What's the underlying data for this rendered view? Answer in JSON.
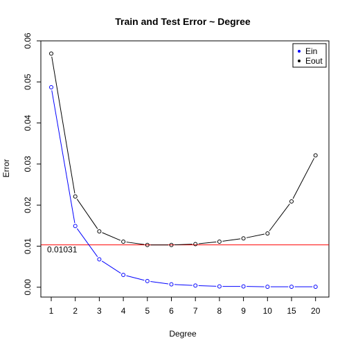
{
  "chart_data": {
    "type": "line",
    "title": "Train and Test Error ~ Degree",
    "xlabel": "Degree",
    "ylabel": "Error",
    "categories": [
      "1",
      "2",
      "3",
      "4",
      "5",
      "6",
      "7",
      "8",
      "9",
      "10",
      "15",
      "20"
    ],
    "ylim": [
      -0.0024,
      0.06
    ],
    "yticks": [
      "0.00",
      "0.01",
      "0.02",
      "0.03",
      "0.04",
      "0.05",
      "0.06"
    ],
    "series": [
      {
        "name": "Ein",
        "color": "#0000ff",
        "values": [
          0.0487,
          0.0149,
          0.0068,
          0.003,
          0.0015,
          0.0007,
          0.0004,
          0.0002,
          0.0002,
          0.0001,
          0.0001,
          0.0001
        ]
      },
      {
        "name": "Eout",
        "color": "#000000",
        "values": [
          0.0569,
          0.0221,
          0.0136,
          0.0111,
          0.0103,
          0.0103,
          0.0105,
          0.0111,
          0.0119,
          0.0131,
          0.0209,
          0.0321
        ]
      }
    ],
    "reference_line": {
      "value": 0.01031,
      "label": "0.01031",
      "color": "#ff0000"
    },
    "legend": {
      "position": "top-right",
      "items": [
        "Ein",
        "Eout"
      ]
    },
    "grid": false
  }
}
